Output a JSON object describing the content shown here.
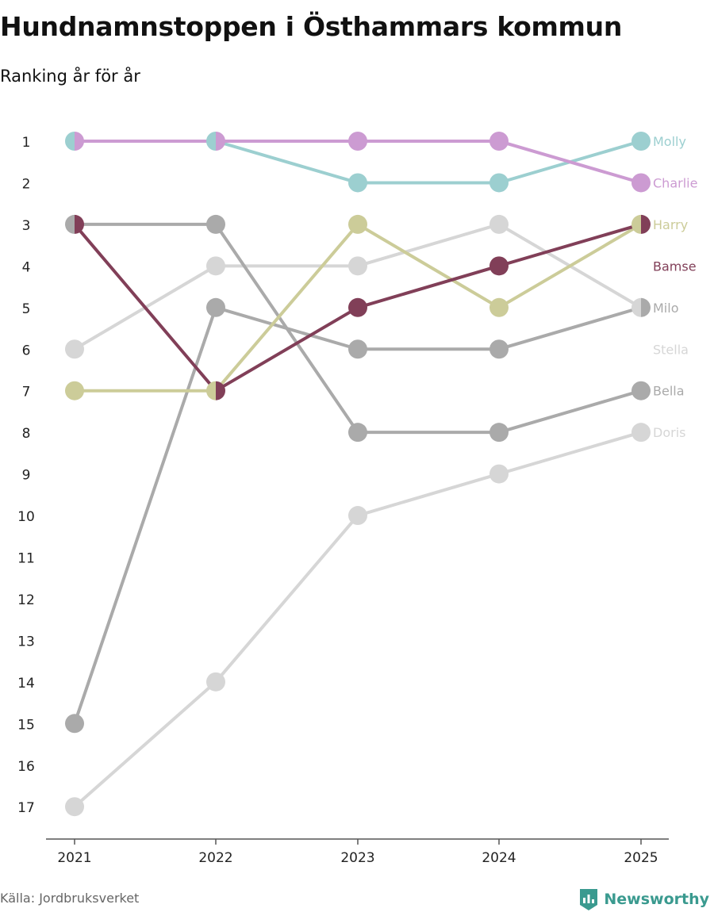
{
  "chart_data": {
    "type": "line",
    "title": "Hundnamnstoppen i Östhammars kommun",
    "subtitle": "Ranking år för år",
    "x": [
      "2021",
      "2022",
      "2023",
      "2024",
      "2025"
    ],
    "y_ticks": [
      "1",
      "2",
      "3",
      "4",
      "5",
      "6",
      "7",
      "8",
      "9",
      "10",
      "11",
      "12",
      "13",
      "14",
      "15",
      "16",
      "17"
    ],
    "ylim": [
      1,
      17
    ],
    "y_reversed": true,
    "series": [
      {
        "name": "Molly",
        "color": "#9ccfd0",
        "values": [
          1,
          1,
          2,
          2,
          1
        ]
      },
      {
        "name": "Charlie",
        "color": "#cc9bd2",
        "values": [
          1,
          1,
          1,
          1,
          2
        ]
      },
      {
        "name": "Harry",
        "color": "#cccc99",
        "values": [
          7,
          7,
          3,
          5,
          3
        ]
      },
      {
        "name": "Bamse",
        "color": "#813f58",
        "values": [
          3,
          7,
          5,
          4,
          3
        ]
      },
      {
        "name": "Milo",
        "color": "#aaaaaa",
        "values": [
          15,
          5,
          6,
          6,
          5
        ]
      },
      {
        "name": "Stella",
        "color": "#d6d6d6",
        "values": [
          6,
          4,
          4,
          3,
          5
        ]
      },
      {
        "name": "Bella",
        "color": "#aaaaaa",
        "values": [
          3,
          3,
          8,
          8,
          7
        ]
      },
      {
        "name": "Doris",
        "color": "#d6d6d6",
        "values": [
          17,
          14,
          10,
          9,
          8
        ]
      }
    ]
  },
  "footer": {
    "source": "Källa: Jordbruksverket",
    "brand": "Newsworthy",
    "brand_color": "#3a9a8f"
  }
}
